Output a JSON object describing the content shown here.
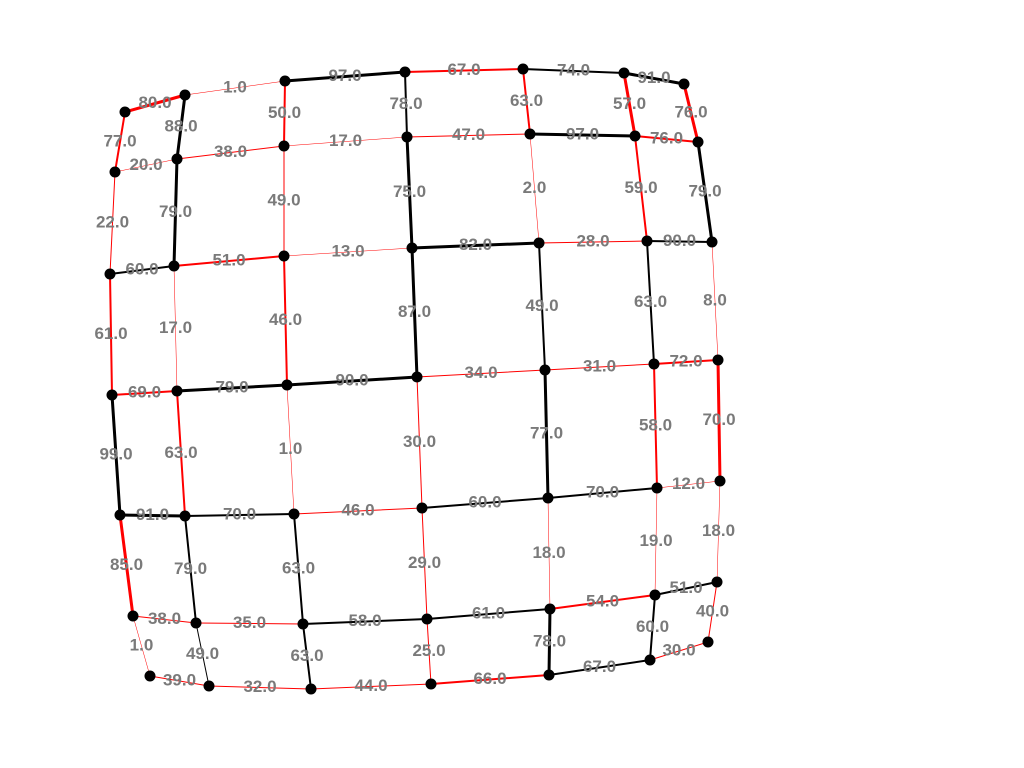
{
  "graph": {
    "colors": {
      "red": "#ff0000",
      "black": "#000000",
      "node": "#000000",
      "label": "#7a7a7a"
    },
    "edges": [
      {
        "from": "n00",
        "to": "n01",
        "label": "80.0",
        "color": "red",
        "weight": 3
      },
      {
        "from": "n01",
        "to": "n02",
        "label": "1.0",
        "color": "red",
        "weight": 0.5
      },
      {
        "from": "n02",
        "to": "n03",
        "label": "97.0",
        "color": "black",
        "weight": 3
      },
      {
        "from": "n03",
        "to": "n04",
        "label": "67.0",
        "color": "red",
        "weight": 2
      },
      {
        "from": "n04",
        "to": "n05",
        "label": "74.0",
        "color": "black",
        "weight": 2
      },
      {
        "from": "n05",
        "to": "n06",
        "label": "91.0",
        "color": "black",
        "weight": 3
      },
      {
        "from": "n10",
        "to": "n11",
        "label": "20.0",
        "color": "red",
        "weight": 0.5
      },
      {
        "from": "n11",
        "to": "n12",
        "label": "38.0",
        "color": "red",
        "weight": 1
      },
      {
        "from": "n12",
        "to": "n13",
        "label": "17.0",
        "color": "red",
        "weight": 0.5
      },
      {
        "from": "n13",
        "to": "n14",
        "label": "47.0",
        "color": "red",
        "weight": 1
      },
      {
        "from": "n14",
        "to": "n15",
        "label": "97.0",
        "color": "black",
        "weight": 3
      },
      {
        "from": "n15",
        "to": "n16",
        "label": "76.0",
        "color": "red",
        "weight": 2
      },
      {
        "from": "n20",
        "to": "n21",
        "label": "60.0",
        "color": "black",
        "weight": 2
      },
      {
        "from": "n21",
        "to": "n22",
        "label": "51.0",
        "color": "red",
        "weight": 2
      },
      {
        "from": "n22",
        "to": "n23",
        "label": "13.0",
        "color": "red",
        "weight": 0.5
      },
      {
        "from": "n23",
        "to": "n24",
        "label": "82.0",
        "color": "black",
        "weight": 3
      },
      {
        "from": "n24",
        "to": "n25",
        "label": "28.0",
        "color": "red",
        "weight": 1
      },
      {
        "from": "n25",
        "to": "n26",
        "label": "90.0",
        "color": "black",
        "weight": 2
      },
      {
        "from": "n30",
        "to": "n31",
        "label": "69.0",
        "color": "red",
        "weight": 2
      },
      {
        "from": "n31",
        "to": "n32",
        "label": "79.0",
        "color": "black",
        "weight": 3
      },
      {
        "from": "n32",
        "to": "n33",
        "label": "90.0",
        "color": "black",
        "weight": 3
      },
      {
        "from": "n33",
        "to": "n34",
        "label": "34.0",
        "color": "red",
        "weight": 1
      },
      {
        "from": "n34",
        "to": "n35",
        "label": "31.0",
        "color": "red",
        "weight": 1
      },
      {
        "from": "n35",
        "to": "n36",
        "label": "72.0",
        "color": "red",
        "weight": 2
      },
      {
        "from": "n40",
        "to": "n41",
        "label": "91.0",
        "color": "black",
        "weight": 3
      },
      {
        "from": "n41",
        "to": "n42",
        "label": "70.0",
        "color": "black",
        "weight": 2
      },
      {
        "from": "n42",
        "to": "n43",
        "label": "46.0",
        "color": "red",
        "weight": 1
      },
      {
        "from": "n43",
        "to": "n44",
        "label": "60.0",
        "color": "black",
        "weight": 2
      },
      {
        "from": "n44",
        "to": "n45",
        "label": "70.0",
        "color": "black",
        "weight": 2
      },
      {
        "from": "n45",
        "to": "n46",
        "label": "12.0",
        "color": "red",
        "weight": 0.5
      },
      {
        "from": "n50",
        "to": "n51",
        "label": "38.0",
        "color": "red",
        "weight": 1
      },
      {
        "from": "n51",
        "to": "n52",
        "label": "35.0",
        "color": "red",
        "weight": 1
      },
      {
        "from": "n52",
        "to": "n53",
        "label": "58.0",
        "color": "black",
        "weight": 2
      },
      {
        "from": "n53",
        "to": "n54",
        "label": "61.0",
        "color": "black",
        "weight": 2
      },
      {
        "from": "n54",
        "to": "n55",
        "label": "54.0",
        "color": "red",
        "weight": 2
      },
      {
        "from": "n55",
        "to": "n56",
        "label": "51.0",
        "color": "black",
        "weight": 2
      },
      {
        "from": "n60",
        "to": "n61",
        "label": "39.0",
        "color": "red",
        "weight": 1
      },
      {
        "from": "n61",
        "to": "n62",
        "label": "32.0",
        "color": "red",
        "weight": 1
      },
      {
        "from": "n62",
        "to": "n63",
        "label": "44.0",
        "color": "red",
        "weight": 1
      },
      {
        "from": "n63",
        "to": "n64",
        "label": "66.0",
        "color": "red",
        "weight": 2
      },
      {
        "from": "n64",
        "to": "n65",
        "label": "67.0",
        "color": "black",
        "weight": 2
      },
      {
        "from": "n65",
        "to": "n66",
        "label": "30.0",
        "color": "red",
        "weight": 1
      },
      {
        "from": "n00",
        "to": "n10",
        "label": "77.0",
        "color": "red",
        "weight": 2
      },
      {
        "from": "n10",
        "to": "n20",
        "label": "22.0",
        "color": "red",
        "weight": 1
      },
      {
        "from": "n20",
        "to": "n30",
        "label": "61.0",
        "color": "red",
        "weight": 2
      },
      {
        "from": "n30",
        "to": "n40",
        "label": "99.0",
        "color": "black",
        "weight": 3
      },
      {
        "from": "n40",
        "to": "n50",
        "label": "85.0",
        "color": "red",
        "weight": 3
      },
      {
        "from": "n50",
        "to": "n60",
        "label": "1.0",
        "color": "red",
        "weight": 0.5
      },
      {
        "from": "n01",
        "to": "n11",
        "label": "88.0",
        "color": "black",
        "weight": 3
      },
      {
        "from": "n11",
        "to": "n21",
        "label": "79.0",
        "color": "black",
        "weight": 3
      },
      {
        "from": "n21",
        "to": "n31",
        "label": "17.0",
        "color": "red",
        "weight": 0.5
      },
      {
        "from": "n31",
        "to": "n41",
        "label": "63.0",
        "color": "red",
        "weight": 2
      },
      {
        "from": "n41",
        "to": "n51",
        "label": "79.0",
        "color": "black",
        "weight": 2
      },
      {
        "from": "n51",
        "to": "n61",
        "label": "49.0",
        "color": "black",
        "weight": 1
      },
      {
        "from": "n02",
        "to": "n12",
        "label": "50.0",
        "color": "red",
        "weight": 2
      },
      {
        "from": "n12",
        "to": "n22",
        "label": "49.0",
        "color": "red",
        "weight": 1
      },
      {
        "from": "n22",
        "to": "n32",
        "label": "46.0",
        "color": "red",
        "weight": 2
      },
      {
        "from": "n32",
        "to": "n42",
        "label": "1.0",
        "color": "red",
        "weight": 0.5
      },
      {
        "from": "n42",
        "to": "n52",
        "label": "63.0",
        "color": "black",
        "weight": 2
      },
      {
        "from": "n52",
        "to": "n62",
        "label": "63.0",
        "color": "black",
        "weight": 2
      },
      {
        "from": "n03",
        "to": "n13",
        "label": "78.0",
        "color": "black",
        "weight": 2
      },
      {
        "from": "n13",
        "to": "n23",
        "label": "75.0",
        "color": "black",
        "weight": 3
      },
      {
        "from": "n23",
        "to": "n33",
        "label": "87.0",
        "color": "black",
        "weight": 3
      },
      {
        "from": "n33",
        "to": "n43",
        "label": "30.0",
        "color": "red",
        "weight": 1
      },
      {
        "from": "n43",
        "to": "n53",
        "label": "29.0",
        "color": "red",
        "weight": 1
      },
      {
        "from": "n53",
        "to": "n63",
        "label": "25.0",
        "color": "red",
        "weight": 1
      },
      {
        "from": "n04",
        "to": "n14",
        "label": "63.0",
        "color": "red",
        "weight": 2
      },
      {
        "from": "n14",
        "to": "n24",
        "label": "2.0",
        "color": "red",
        "weight": 0.5
      },
      {
        "from": "n24",
        "to": "n34",
        "label": "49.0",
        "color": "black",
        "weight": 2
      },
      {
        "from": "n34",
        "to": "n44",
        "label": "77.0",
        "color": "black",
        "weight": 3
      },
      {
        "from": "n44",
        "to": "n54",
        "label": "18.0",
        "color": "red",
        "weight": 0.5
      },
      {
        "from": "n54",
        "to": "n64",
        "label": "78.0",
        "color": "black",
        "weight": 3
      },
      {
        "from": "n05",
        "to": "n15",
        "label": "57.0",
        "color": "red",
        "weight": 3
      },
      {
        "from": "n15",
        "to": "n25",
        "label": "59.0",
        "color": "red",
        "weight": 2
      },
      {
        "from": "n25",
        "to": "n35",
        "label": "63.0",
        "color": "black",
        "weight": 2
      },
      {
        "from": "n35",
        "to": "n45",
        "label": "58.0",
        "color": "red",
        "weight": 2
      },
      {
        "from": "n45",
        "to": "n55",
        "label": "19.0",
        "color": "red",
        "weight": 0.5
      },
      {
        "from": "n55",
        "to": "n65",
        "label": "60.0",
        "color": "black",
        "weight": 2
      },
      {
        "from": "n06",
        "to": "n16",
        "label": "76.0",
        "color": "red",
        "weight": 3
      },
      {
        "from": "n16",
        "to": "n26",
        "label": "79.0",
        "color": "black",
        "weight": 3
      },
      {
        "from": "n26",
        "to": "n36",
        "label": "8.0",
        "color": "red",
        "weight": 0.5
      },
      {
        "from": "n36",
        "to": "n46",
        "label": "70.0",
        "color": "red",
        "weight": 3
      },
      {
        "from": "n46",
        "to": "n56",
        "label": "18.0",
        "color": "red",
        "weight": 0.5
      },
      {
        "from": "n56",
        "to": "n66",
        "label": "40.0",
        "color": "red",
        "weight": 1
      }
    ]
  }
}
